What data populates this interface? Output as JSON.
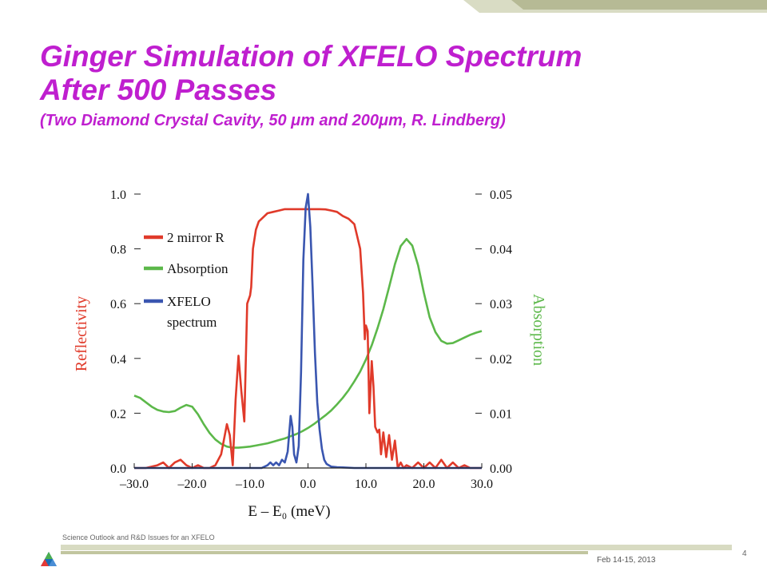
{
  "title": {
    "line1": "Ginger Simulation of XFELO Spectrum",
    "line2": "After 500 Passes",
    "subtitle": "(Two Diamond Crystal Cavity, 50 μm and 200μm, R. Lindberg)"
  },
  "footer": {
    "text": "Science Outlook and R&D Issues for an XFELO",
    "date": "Feb 14-15, 2013",
    "page": "4"
  },
  "colors": {
    "title": "#bf1fcf",
    "reflectivity": "#e03a2a",
    "absorption": "#5cb84a",
    "spectrum": "#3a56b0",
    "band": "#c8ccaa"
  },
  "chart_data": {
    "type": "line",
    "xlabel": "E – E₀ (meV)",
    "ylabel_left": "Reflectivity",
    "ylabel_right": "Absorption",
    "xlim": [
      -30,
      30
    ],
    "ylim_left": [
      0,
      1.0
    ],
    "ylim_right": [
      0,
      0.05
    ],
    "x_ticks": [
      "–30.0",
      "–20.0",
      "–10.0",
      "0.0",
      "10.0",
      "20.0",
      "30.0"
    ],
    "y_ticks_left": [
      "0.0",
      "0.2",
      "0.4",
      "0.6",
      "0.8",
      "1.0"
    ],
    "y_ticks_right": [
      "0.00",
      "0.01",
      "0.02",
      "0.03",
      "0.04",
      "0.05"
    ],
    "legend": [
      {
        "label": "2 mirror R",
        "color": "#e03a2a"
      },
      {
        "label": "Absorption",
        "color": "#5cb84a"
      },
      {
        "label": "XFELO\nspectrum",
        "color": "#3a56b0"
      }
    ],
    "series": [
      {
        "name": "2 mirror R",
        "axis": "left",
        "color": "#e03a2a",
        "x": [
          -30,
          -28,
          -26,
          -25,
          -24,
          -23,
          -22,
          -21,
          -20,
          -19,
          -18,
          -17,
          -16,
          -15,
          -14,
          -13.5,
          -13,
          -12.5,
          -12,
          -11.5,
          -11,
          -10.5,
          -10,
          -9.8,
          -9.5,
          -9,
          -8.5,
          -8,
          -7,
          -6,
          -5,
          -4,
          -3,
          -2,
          -1,
          0,
          1,
          2,
          3,
          4,
          5,
          6,
          7,
          8,
          9,
          9.5,
          9.8,
          10,
          10.3,
          10.6,
          11,
          11.3,
          11.6,
          12,
          12.3,
          12.6,
          13,
          13.5,
          14,
          14.5,
          15,
          15.5,
          16,
          16.5,
          17,
          18,
          19,
          20,
          21,
          22,
          23,
          24,
          25,
          26,
          27,
          28,
          29,
          30
        ],
        "y": [
          0.0,
          0.0,
          0.01,
          0.02,
          0.0,
          0.02,
          0.03,
          0.01,
          0.0,
          0.01,
          0.0,
          0.0,
          0.01,
          0.05,
          0.16,
          0.12,
          0.01,
          0.25,
          0.41,
          0.28,
          0.17,
          0.6,
          0.63,
          0.66,
          0.8,
          0.87,
          0.9,
          0.91,
          0.93,
          0.935,
          0.94,
          0.945,
          0.945,
          0.945,
          0.945,
          0.945,
          0.945,
          0.945,
          0.944,
          0.94,
          0.935,
          0.92,
          0.91,
          0.89,
          0.8,
          0.64,
          0.47,
          0.52,
          0.5,
          0.2,
          0.39,
          0.3,
          0.15,
          0.13,
          0.14,
          0.05,
          0.13,
          0.04,
          0.12,
          0.03,
          0.1,
          0.0,
          0.02,
          0.0,
          0.01,
          0.0,
          0.02,
          0.0,
          0.02,
          0.0,
          0.03,
          0.0,
          0.02,
          0.0,
          0.01,
          0.0,
          0.0,
          0.0
        ]
      },
      {
        "name": "Absorption",
        "axis": "right",
        "color": "#5cb84a",
        "x": [
          -30,
          -29,
          -28,
          -27,
          -26,
          -25,
          -24,
          -23,
          -22,
          -21,
          -20,
          -19,
          -18,
          -17,
          -16,
          -15,
          -14,
          -13,
          -12,
          -11,
          -10,
          -9,
          -8,
          -7,
          -6,
          -5,
          -4,
          -3,
          -2,
          -1,
          0,
          1,
          2,
          3,
          4,
          5,
          6,
          7,
          8,
          9,
          10,
          11,
          12,
          13,
          14,
          15,
          16,
          17,
          18,
          19,
          20,
          21,
          22,
          23,
          24,
          25,
          26,
          27,
          28,
          29,
          30
        ],
        "y": [
          0.0132,
          0.0128,
          0.012,
          0.0112,
          0.0106,
          0.0103,
          0.0102,
          0.0104,
          0.011,
          0.0115,
          0.0112,
          0.0098,
          0.008,
          0.0064,
          0.0052,
          0.0044,
          0.0039,
          0.0037,
          0.0037,
          0.0038,
          0.0039,
          0.0041,
          0.0043,
          0.0045,
          0.0048,
          0.0051,
          0.0054,
          0.0058,
          0.0062,
          0.0067,
          0.0073,
          0.008,
          0.0088,
          0.0096,
          0.0105,
          0.0116,
          0.0128,
          0.0142,
          0.0158,
          0.0176,
          0.0198,
          0.0224,
          0.0255,
          0.029,
          0.033,
          0.0372,
          0.0405,
          0.0418,
          0.0406,
          0.037,
          0.032,
          0.0275,
          0.0248,
          0.0232,
          0.0227,
          0.0228,
          0.0233,
          0.0238,
          0.0243,
          0.0247,
          0.025
        ]
      },
      {
        "name": "XFELO spectrum",
        "axis": "left",
        "color": "#3a56b0",
        "x": [
          -30,
          -20,
          -10,
          -8,
          -7,
          -6.5,
          -6,
          -5.5,
          -5,
          -4.5,
          -4,
          -3.5,
          -3,
          -2.7,
          -2.4,
          -2,
          -1.6,
          -1.2,
          -0.8,
          -0.4,
          0,
          0.4,
          0.8,
          1.2,
          1.6,
          2,
          2.4,
          2.8,
          3.2,
          3.6,
          4,
          5,
          6,
          8,
          10,
          20,
          30
        ],
        "y": [
          0,
          0,
          0,
          0.0,
          0.01,
          0.02,
          0.01,
          0.02,
          0.01,
          0.03,
          0.02,
          0.06,
          0.19,
          0.15,
          0.05,
          0.02,
          0.08,
          0.35,
          0.76,
          0.95,
          1.0,
          0.88,
          0.66,
          0.42,
          0.24,
          0.14,
          0.07,
          0.03,
          0.015,
          0.01,
          0.005,
          0.003,
          0.002,
          0.0,
          0.0,
          0,
          0
        ]
      }
    ]
  }
}
